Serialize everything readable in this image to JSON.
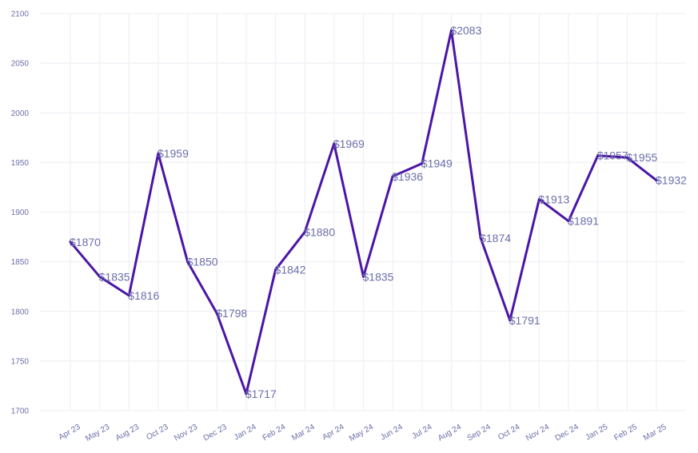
{
  "chart_data": {
    "type": "line",
    "title": "",
    "xlabel": "",
    "ylabel": "",
    "categories": [
      "Apr 23",
      "May 23",
      "Aug 23",
      "Oct 23",
      "Nov 23",
      "Dec 23",
      "Jan 24",
      "Feb 24",
      "Mar 24",
      "Apr 24",
      "May 24",
      "Jun 24",
      "Jul 24",
      "Aug 24",
      "Sep 24",
      "Oct 24",
      "Nov 24",
      "Dec 24",
      "Jan 25",
      "Feb 25",
      "Mar 25"
    ],
    "series": [
      {
        "values": [
          1870,
          1835,
          1816,
          1959,
          1850,
          1798,
          1717,
          1842,
          1880,
          1969,
          1835,
          1936,
          1949,
          2083,
          1874,
          1791,
          1913,
          1891,
          1957,
          1955,
          1932
        ],
        "labels": [
          "$1870",
          "$1835",
          "$1816",
          "$1959",
          "$1850",
          "$1798",
          "$1717",
          "$1842",
          "$1880",
          "$1969",
          "$1835",
          "$1936",
          "$1949",
          "$2083",
          "$1874",
          "$1791",
          "$1913",
          "$1891",
          "$1957",
          "$1955",
          "$1932"
        ],
        "color": "#4b16a6"
      }
    ],
    "ylim": [
      1700,
      2100
    ],
    "yticks": [
      1700,
      1750,
      1800,
      1850,
      1900,
      1950,
      2000,
      2050,
      2100
    ],
    "grid": true,
    "legend": "none",
    "colors": {
      "line": "#4b16a6",
      "text": "#6b6fa8",
      "grid": "#f3f3f8"
    }
  }
}
